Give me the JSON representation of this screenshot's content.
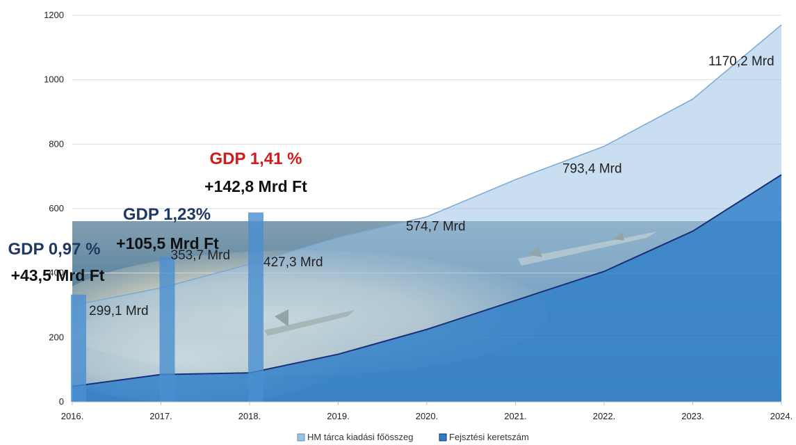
{
  "chart_data": {
    "type": "area",
    "categories": [
      "2016.",
      "2017.",
      "2018.",
      "2019.",
      "2020.",
      "2021.",
      "2022.",
      "2023.",
      "2024."
    ],
    "ylim": [
      0,
      1200
    ],
    "yticks": [
      "0",
      "200",
      "400",
      "600",
      "800",
      "1000",
      "1200"
    ],
    "grid": true,
    "legend_position": "bottom",
    "series": [
      {
        "name": "HM tárca kiadási főösszeg",
        "type": "area",
        "color": "#9cc3e4",
        "values": [
          299.1,
          353.7,
          427.3,
          510,
          574.7,
          690,
          793.4,
          940,
          1170.2
        ]
      },
      {
        "name": "Fejsztési keretszám",
        "type": "area",
        "color": "#2f7fc8",
        "values": [
          48,
          85,
          90,
          148,
          225,
          315,
          405,
          530,
          705
        ]
      }
    ],
    "bars": {
      "color": "#4a8fd0",
      "values": [
        333,
        450,
        588
      ],
      "x_index": [
        0,
        1,
        2
      ]
    },
    "data_labels": [
      {
        "index": 0,
        "text": "299,1 Mrd"
      },
      {
        "index": 1,
        "text": "353,7 Mrd"
      },
      {
        "index": 2,
        "text": "427,3 Mrd"
      },
      {
        "index": 4,
        "text": "574,7 Mrd"
      },
      {
        "index": 6,
        "text": "793,4 Mrd"
      },
      {
        "index": 8,
        "text": "1170,2 Mrd"
      }
    ],
    "annotations": [
      {
        "index": 0,
        "pct": "GDP 0,97 %",
        "amount": "+43,5 Mrd Ft",
        "color": "#1f3864"
      },
      {
        "index": 1,
        "pct": "GDP 1,23%",
        "amount": "+105,5 Mrd Ft",
        "color": "#1f3864"
      },
      {
        "index": 2,
        "pct": "GDP 1,41 %",
        "amount": "+142,8 Mrd Ft",
        "color": "#d11a1a"
      }
    ]
  }
}
